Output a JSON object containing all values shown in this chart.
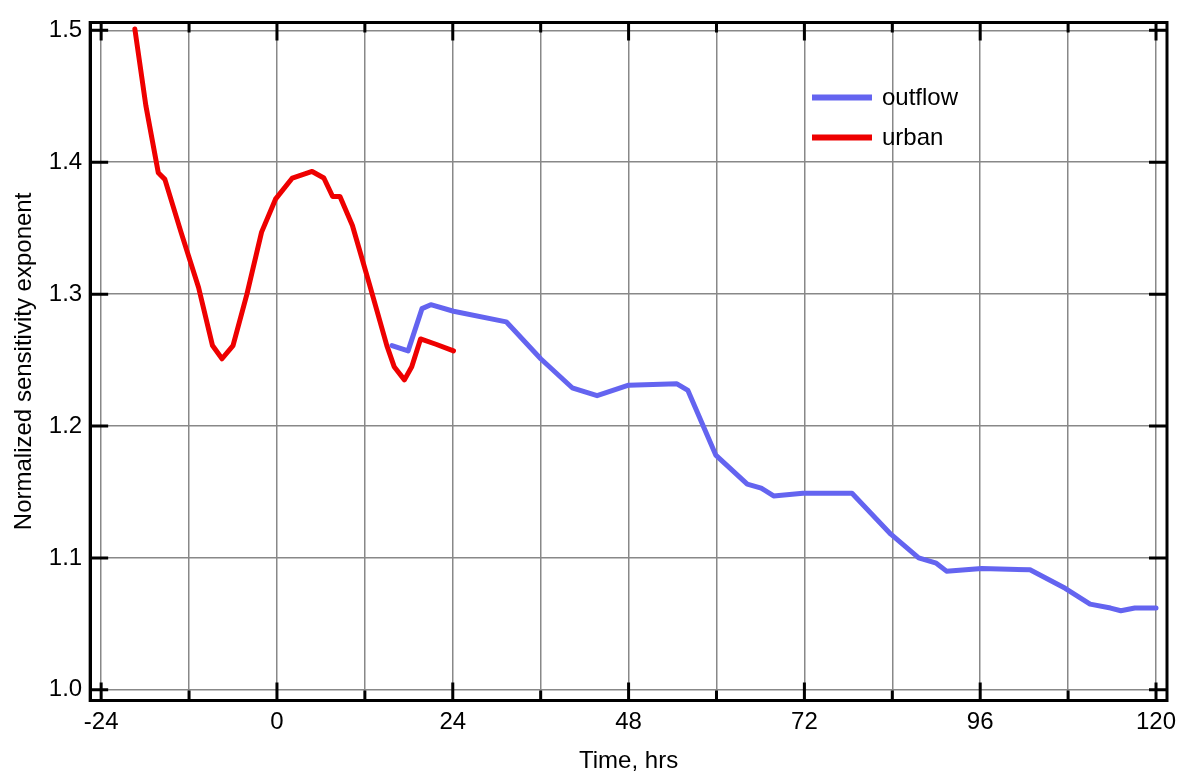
{
  "chart_data": {
    "type": "line",
    "xlabel": "Time, hrs",
    "ylabel": "Normalized sensitivity exponent",
    "xlim": [
      -25.5,
      121.5
    ],
    "ylim": [
      0.992,
      1.506
    ],
    "xticks": [
      -24,
      {
        "value": -12,
        "label": null
      },
      0,
      {
        "value": 12,
        "label": null
      },
      24,
      {
        "value": 36,
        "label": null
      },
      48,
      {
        "value": 60,
        "label": null
      },
      72,
      {
        "value": 84,
        "label": null
      },
      96,
      {
        "value": 108,
        "label": null
      },
      120
    ],
    "yticks": [
      {
        "value": 1,
        "label": "1.0"
      },
      1.1,
      1.2,
      1.3,
      1.4,
      1.5
    ],
    "grid": true,
    "legend": "top right",
    "marker": "none",
    "line_style": "solid",
    "series": [
      {
        "name": "outflow",
        "color": "#6464f0",
        "x": [
          15.7,
          17.9,
          19.8,
          21.0,
          24.1,
          31.3,
          36.0,
          40.3,
          43.7,
          48.0,
          54.6,
          56.1,
          59.9,
          64.2,
          66.1,
          67.8,
          71.8,
          78.5,
          83.8,
          87.6,
          90.0,
          91.4,
          96.2,
          102.8,
          107.6,
          111.0,
          113.8,
          115.2,
          117.1,
          120.0
        ],
        "values": [
          1.261,
          1.257,
          1.289,
          1.292,
          1.287,
          1.279,
          1.251,
          1.229,
          1.223,
          1.231,
          1.232,
          1.227,
          1.178,
          1.156,
          1.153,
          1.147,
          1.149,
          1.149,
          1.118,
          1.1,
          1.096,
          1.09,
          1.092,
          1.091,
          1.077,
          1.065,
          1.062,
          1.06,
          1.062,
          1.062
        ]
      },
      {
        "name": "urban",
        "color": "#ee0000",
        "x": [
          -19.4,
          -17.9,
          -16.2,
          -15.3,
          -13.1,
          -10.7,
          -8.8,
          -7.5,
          -6.0,
          -4.1,
          -2.1,
          -0.2,
          2.1,
          4.8,
          6.4,
          7.6,
          8.6,
          10.3,
          12.6,
          15.0,
          16.0,
          17.4,
          18.4,
          19.6,
          21.7,
          24.1
        ],
        "values": [
          1.501,
          1.443,
          1.392,
          1.387,
          1.347,
          1.305,
          1.261,
          1.251,
          1.261,
          1.3,
          1.347,
          1.372,
          1.388,
          1.393,
          1.388,
          1.374,
          1.374,
          1.352,
          1.308,
          1.261,
          1.245,
          1.235,
          1.245,
          1.266,
          1.262,
          1.257
        ]
      }
    ]
  }
}
